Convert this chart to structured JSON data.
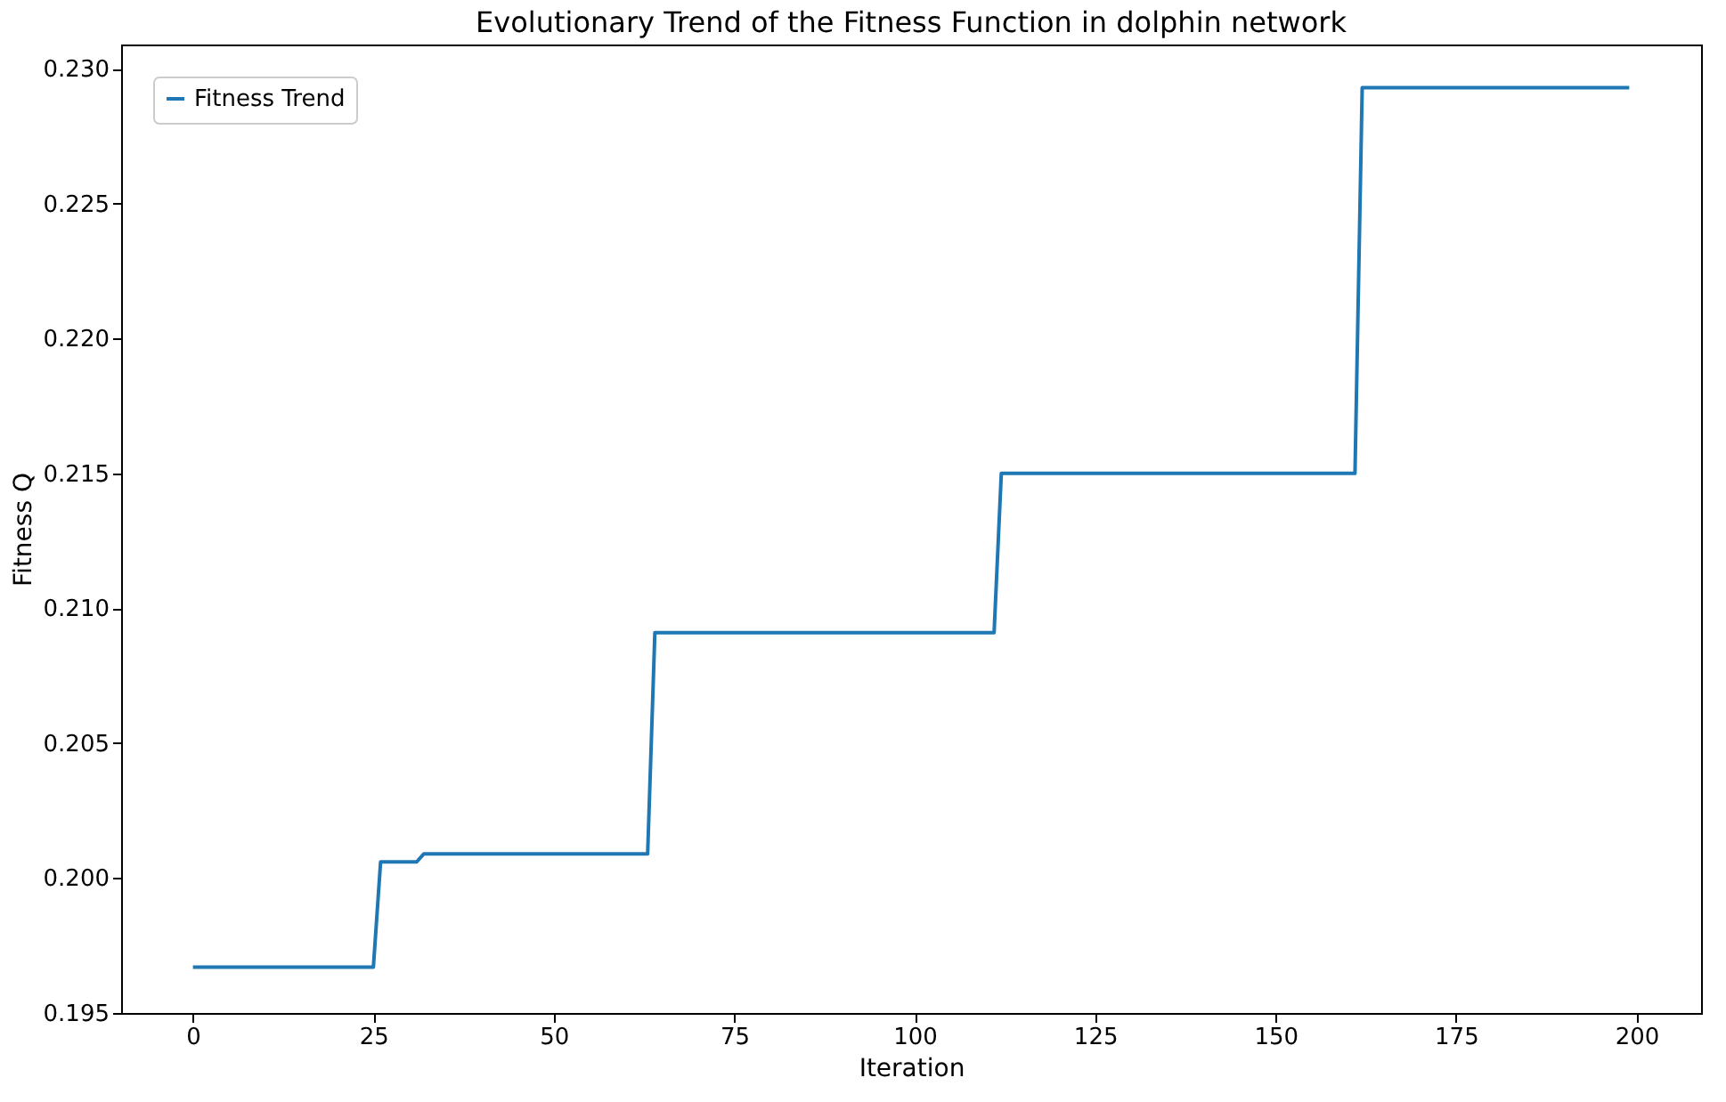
{
  "chart_data": {
    "type": "line",
    "title": "Evolutionary Trend of the Fitness Function  in dolphin network",
    "xlabel": "Iteration",
    "ylabel": "Fitness Q",
    "x": [
      0,
      25,
      26,
      31,
      32,
      63,
      64,
      111,
      112,
      161,
      162,
      199
    ],
    "series": [
      {
        "name": "Fitness Trend",
        "color": "#1f77b4",
        "values": [
          0.1967,
          0.1967,
          0.2006,
          0.2006,
          0.2009,
          0.2009,
          0.2091,
          0.2091,
          0.215,
          0.215,
          0.2293,
          0.2293
        ]
      }
    ],
    "xlim": [
      -9.95,
      208.95
    ],
    "xticks": [
      0,
      25,
      50,
      75,
      100,
      125,
      150,
      175,
      200
    ],
    "ylim": [
      0.195,
      0.2309
    ],
    "yticks": [
      0.195,
      {
        "value": 0.2,
        "label": "0.200"
      },
      0.205,
      {
        "value": 0.21,
        "label": "0.210"
      },
      0.215,
      {
        "value": 0.22,
        "label": "0.220"
      },
      0.225,
      {
        "value": 0.23,
        "label": "0.230"
      }
    ],
    "legend": "top left",
    "grid": false,
    "marker": "none",
    "line_style": "solid"
  }
}
